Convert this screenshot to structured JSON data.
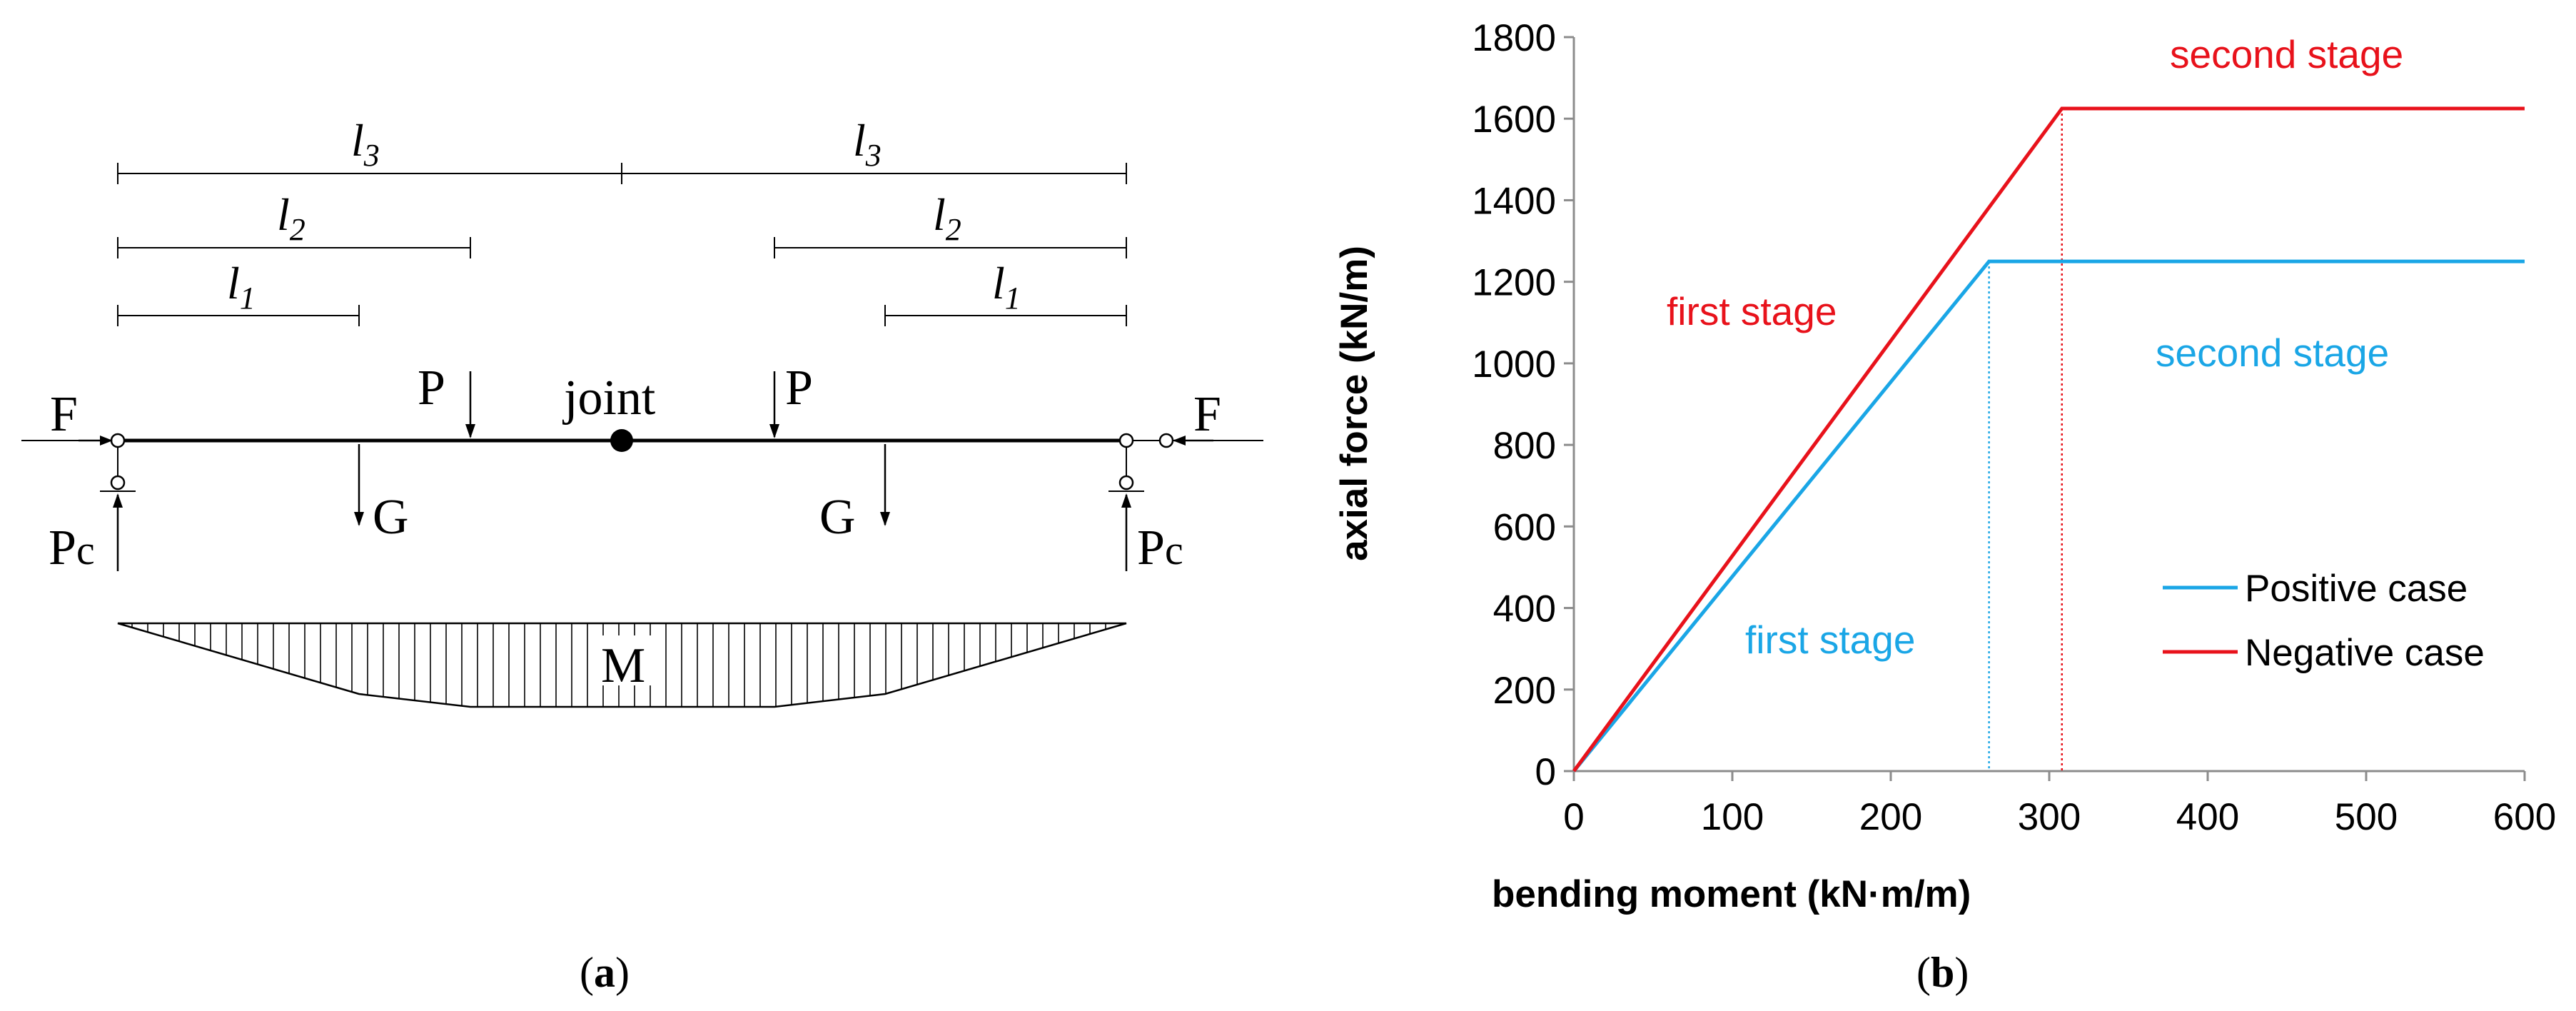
{
  "diagram": {
    "labels": {
      "l3_left": "l",
      "l3_left_sub": "3",
      "l3_right": "l",
      "l3_right_sub": "3",
      "l2_left": "l",
      "l2_left_sub": "2",
      "l2_right": "l",
      "l2_right_sub": "2",
      "l1_left": "l",
      "l1_left_sub": "1",
      "l1_right": "l",
      "l1_right_sub": "1",
      "force_f_left": "F",
      "force_f_right": "F",
      "load_p_left": "P",
      "load_p_right": "P",
      "joint": "joint",
      "weight_g_left": "G",
      "weight_g_right": "G",
      "reaction_left": "P",
      "reaction_left_sub": "c",
      "reaction_right": "P",
      "reaction_right_sub": "c",
      "moment": "M"
    },
    "caption": "a"
  },
  "chart": {
    "caption": "b",
    "annotations": {
      "neg_second": "second stage",
      "neg_first": "first stage",
      "pos_second": "second stage",
      "pos_first": "first stage"
    },
    "colors": {
      "positive": "#1aa6e6",
      "negative": "#e8121b"
    }
  },
  "chart_data": {
    "type": "line",
    "title": "",
    "xlabel": "bending moment (kN·m/m)",
    "ylabel": "axial force (kN/m)",
    "xlim": [
      0,
      600
    ],
    "ylim": [
      0,
      1800
    ],
    "xticks": [
      0,
      100,
      200,
      300,
      400,
      500,
      600
    ],
    "yticks": [
      0,
      200,
      400,
      600,
      800,
      1000,
      1200,
      1400,
      1600,
      1800
    ],
    "grid": false,
    "legend_position": "lower-right",
    "series": [
      {
        "name": "Positive case",
        "color": "#1aa6e6",
        "x": [
          0,
          262,
          600
        ],
        "y": [
          0,
          1250,
          1250
        ]
      },
      {
        "name": "Negative case",
        "color": "#e8121b",
        "x": [
          0,
          308,
          600
        ],
        "y": [
          0,
          1625,
          1625
        ]
      }
    ],
    "drop_lines": [
      {
        "series": "Positive case",
        "x": 262,
        "y": 1250
      },
      {
        "series": "Negative case",
        "x": 308,
        "y": 1625
      }
    ]
  }
}
